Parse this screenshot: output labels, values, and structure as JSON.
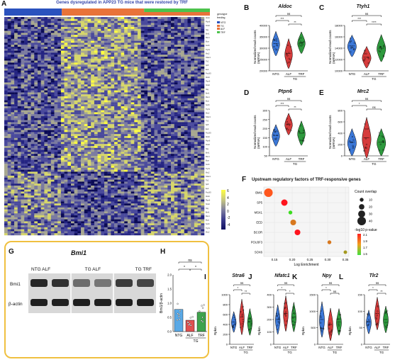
{
  "panelA": {
    "label": "A",
    "title": "Genes dysregulated in APP23 TG mice that were restored by TRF",
    "legend_header_1": "genotype",
    "legend_header_2": "feeding",
    "legend_items_geno": [
      "NTG",
      "TG"
    ],
    "legend_items_feed": [
      "ALF",
      "TRF"
    ],
    "colorbar_ticks": [
      "6",
      "4",
      "2",
      "0",
      "-2",
      "-4"
    ],
    "top_bar_colors": [
      "#2a52be",
      "#e8733a",
      "#4cc24c"
    ],
    "gene_labels": [
      "Aldoc",
      "Ttyh1",
      "Ptpn6",
      "Mrc2",
      "Stra6",
      "Nfatc1",
      "Npy",
      "Tlr2",
      "Bmi1",
      "Sp5",
      "Msx1",
      "Eed",
      "Bcor",
      "Pou3f3",
      "Sox6"
    ]
  },
  "violins": [
    {
      "id": "B",
      "label": "B",
      "gene": "Aldoc",
      "ylabel": "Normalized read counts\n(mRNA)",
      "ticks": [
        "40000",
        "35000",
        "30000",
        "25000",
        "20000"
      ],
      "cats": [
        "NTG",
        "ALF",
        "TRF"
      ],
      "group": "TG",
      "sig": [
        "ns",
        "***",
        "**"
      ]
    },
    {
      "id": "C",
      "label": "C",
      "gene": "Ttyh1",
      "ylabel": "Normalized read counts\n(mRNA)",
      "ticks": [
        "18000",
        "16000",
        "14000",
        "12000",
        "10000"
      ],
      "cats": [
        "NTG",
        "ALF",
        "TRF"
      ],
      "group": "TG",
      "sig": [
        "ns",
        "***",
        "****"
      ]
    },
    {
      "id": "D",
      "label": "D",
      "gene": "Ptpn6",
      "ylabel": "Normalized read counts\n(mRNA)",
      "ticks": [
        "300",
        "250",
        "200",
        "150",
        "100",
        "50"
      ],
      "cats": [
        "NTG",
        "ALF",
        "TRF"
      ],
      "group": "TG",
      "sig": [
        "ns",
        "***",
        "**"
      ]
    },
    {
      "id": "E",
      "label": "E",
      "gene": "Mrc2",
      "ylabel": "Normalized read counts\n(mRNA)",
      "ticks": [
        "800",
        "600",
        "400",
        "200",
        "0"
      ],
      "cats": [
        "NTG",
        "ALF",
        "TRF"
      ],
      "group": "TG",
      "sig": [
        "ns",
        "*",
        "ns"
      ]
    },
    {
      "id": "I",
      "label": "I",
      "gene": "Stra6",
      "ylabel": "Rpkm",
      "ticks": [
        "1000",
        "800",
        "600",
        "400",
        "200",
        "0"
      ],
      "cats": [
        "NTG",
        "ALF",
        "TRF"
      ],
      "group": "TG",
      "sig": [
        "ns",
        "*",
        "**"
      ]
    },
    {
      "id": "J",
      "label": "J",
      "gene": "Nfatc1",
      "ylabel": "Rpkm",
      "ticks": [
        "400",
        "300",
        "200",
        "100",
        "0"
      ],
      "cats": [
        "NTG",
        "ALF",
        "TRF"
      ],
      "group": "TG",
      "sig": [
        "ns",
        "*",
        "*"
      ]
    },
    {
      "id": "K",
      "label": "K",
      "gene": "Npy",
      "ylabel": "Rpkm",
      "ticks": [
        "1500",
        "1000",
        "500",
        "0"
      ],
      "cats": [
        "NTG",
        "ALF",
        "TRF"
      ],
      "group": "TG",
      "sig": [
        "ns",
        "*",
        "ns"
      ]
    },
    {
      "id": "L",
      "label": "L",
      "gene": "Tlr2",
      "ylabel": "Rpkm",
      "ticks": [
        "150",
        "100",
        "50",
        "0"
      ],
      "cats": [
        "NTG",
        "ALF",
        "TRF"
      ],
      "group": "TG",
      "sig": [
        "ns",
        "*",
        "**"
      ]
    }
  ],
  "panelF": {
    "label": "F",
    "title": "Upstream regulatory factors of TRF-responsive genes",
    "xlabel": "Log Enrichment",
    "legend_size_title": "Count overlap",
    "legend_sizes": [
      "10",
      "20",
      "30",
      "40"
    ],
    "legend_color_title": "-log10 p-value",
    "colorbar_ticks": [
      "2.1",
      "1.9",
      "1.7",
      "1.5"
    ],
    "xticks": [
      "0.15",
      "0.20",
      "0.25",
      "0.30",
      "0.35"
    ]
  },
  "chart_data": {
    "type": "scatter",
    "title": "Upstream regulatory factors of TRF-responsive genes",
    "xlabel": "Log Enrichment",
    "ylabel": "",
    "xlim": [
      0.12,
      0.36
    ],
    "points": [
      {
        "y": "BMI1",
        "x": 0.133,
        "count": 40,
        "p": 1.9
      },
      {
        "y": "SP5",
        "x": 0.178,
        "count": 26,
        "p": 2.1
      },
      {
        "y": "MSX1",
        "x": 0.195,
        "count": 10,
        "p": 1.5
      },
      {
        "y": "EED",
        "x": 0.203,
        "count": 22,
        "p": 1.8
      },
      {
        "y": "BCOR",
        "x": 0.215,
        "count": 22,
        "p": 2.1
      },
      {
        "y": "POU3F3",
        "x": 0.305,
        "count": 10,
        "p": 1.8
      },
      {
        "y": "SOX6",
        "x": 0.35,
        "count": 8,
        "p": 1.7
      }
    ]
  },
  "panelG": {
    "label": "G",
    "title": "Bmi1",
    "lane_labels": [
      "NTG ALF",
      "TG ALF",
      "TG TRF"
    ],
    "row_labels": [
      "Bmi1",
      "β-actin"
    ]
  },
  "panelH": {
    "label": "H",
    "ylabel": "Bmi1/β-actin",
    "ticks": [
      "2.0",
      "1.5",
      "1.0",
      "0.5",
      "0.0"
    ],
    "cats": [
      "NTG",
      "ALF",
      "TRF"
    ],
    "group": "TG",
    "sig": [
      "ns",
      "*",
      "*"
    ],
    "values": [
      0.78,
      0.4,
      0.68
    ],
    "bar_colors": [
      "#5aa9e6",
      "#e05050",
      "#3fa34d"
    ]
  }
}
